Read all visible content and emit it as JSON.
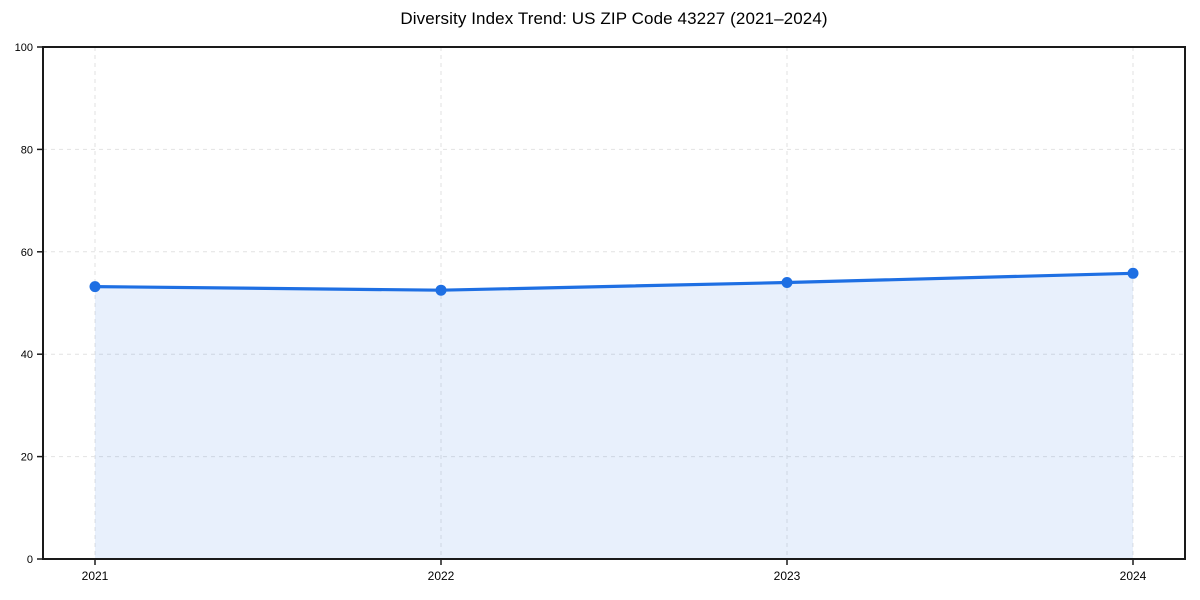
{
  "page": {
    "background": "#ffffff"
  },
  "chart_data": {
    "type": "area",
    "title": "Diversity Index Trend: US ZIP Code 43227 (2021–2024)",
    "categories": [
      "2021",
      "2022",
      "2023",
      "2024"
    ],
    "series": [
      {
        "name": "Diversity Index",
        "values": [
          53.2,
          52.5,
          54.0,
          55.8
        ]
      }
    ],
    "xlabel": "",
    "ylabel": "",
    "ylim": [
      0,
      100
    ],
    "yticks": [
      0,
      20,
      40,
      60,
      80,
      100
    ],
    "grid": true,
    "grid_style": "dashed",
    "legend_position": "none",
    "line_color": "#1e6fe3",
    "marker_color": "#1e6fe3",
    "fill_color": "rgba(30,111,227,0.10)",
    "grid_color": "#e2e2e2",
    "axis_color": "#1a1a1a",
    "text_color": "#000000"
  }
}
